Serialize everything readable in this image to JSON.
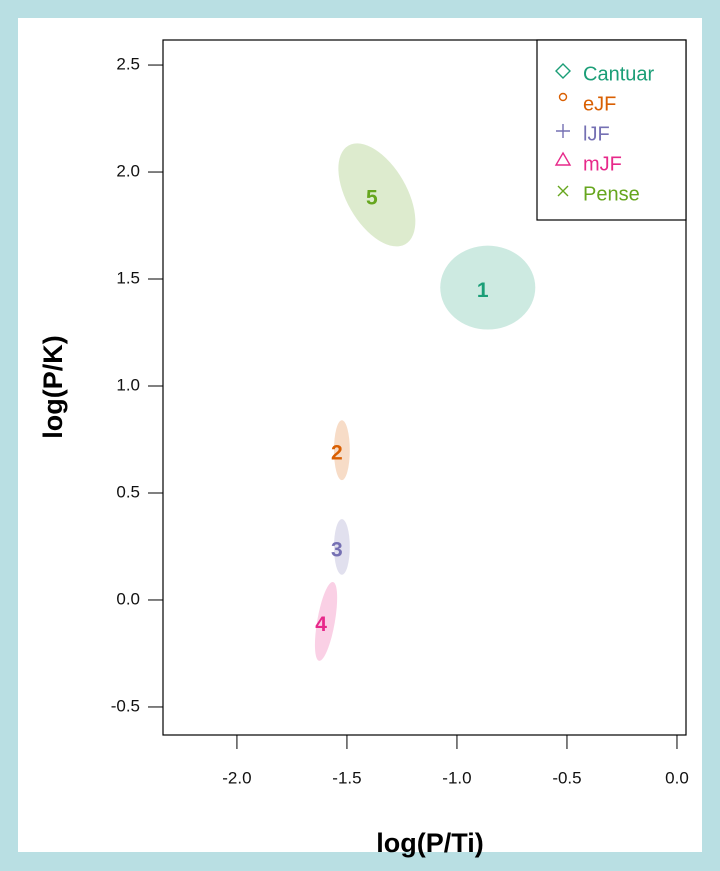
{
  "chart_data": {
    "type": "ellipse",
    "xlabel": "log(P/Ti)",
    "ylabel": "log(P/K)",
    "xlim": [
      -2.336,
      0.041
    ],
    "ylim": [
      -0.631,
      2.617
    ],
    "xticks": [
      {
        "value": -2.0,
        "label": "-2.0"
      },
      {
        "value": -1.5,
        "label": "-1.5"
      },
      {
        "value": -1.0,
        "label": "-1.0"
      },
      -0.5,
      {
        "value": 0.0,
        "label": "0.0"
      }
    ],
    "yticks": [
      -0.5,
      {
        "value": 0.0,
        "label": "0.0"
      },
      0.5,
      {
        "value": 1.0,
        "label": "1.0"
      },
      1.5,
      {
        "value": 2.0,
        "label": "2.0"
      },
      2.5
    ],
    "legend": "top-right",
    "series": [
      {
        "name": "Cantuar",
        "color": "#1b9e77",
        "marker": "diamond",
        "label": "1",
        "x": -0.86,
        "y": 1.46,
        "rx": 0.216,
        "ry": 0.196,
        "angle": 0
      },
      {
        "name": "eJF",
        "color": "#d95f02",
        "marker": "circle",
        "label": "2",
        "x": -1.523,
        "y": 0.7,
        "rx": 0.036,
        "ry": 0.14,
        "angle": 0
      },
      {
        "name": "lJF",
        "color": "#7570b3",
        "marker": "plus",
        "label": "3",
        "x": -1.523,
        "y": 0.248,
        "rx": 0.036,
        "ry": 0.13,
        "angle": 0
      },
      {
        "name": "mJF",
        "color": "#e7298a",
        "marker": "triangle",
        "label": "4",
        "x": -1.595,
        "y": -0.1,
        "rx": 0.04,
        "ry": 0.187,
        "angle": 10
      },
      {
        "name": "Pense",
        "color": "#66a61e",
        "marker": "cross",
        "label": "5",
        "x": -1.364,
        "y": 1.893,
        "rx": 0.136,
        "ry": 0.266,
        "angle": -30
      }
    ]
  }
}
